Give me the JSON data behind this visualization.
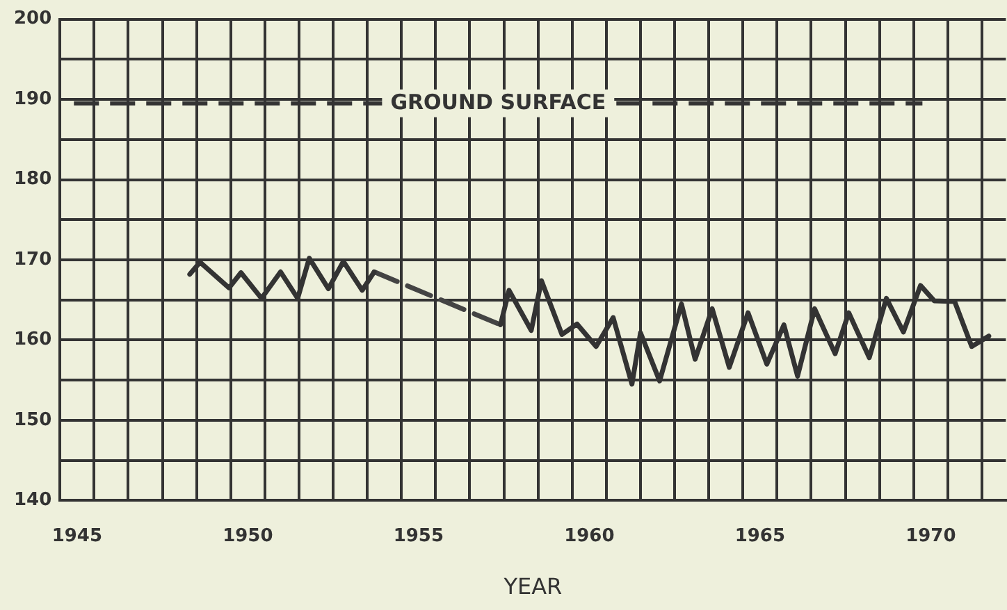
{
  "chart_data": {
    "type": "line",
    "xlabel": "YEAR",
    "xlim": [
      1944.5,
      1972.2
    ],
    "ylim": [
      140,
      200
    ],
    "xticks": [
      {
        "value": 1944.5,
        "label": null
      },
      {
        "value": 1945,
        "label": "1945"
      },
      {
        "value": 1945.5,
        "label": null
      },
      {
        "value": 1946.5,
        "label": null
      },
      {
        "value": 1947.5,
        "label": null
      },
      {
        "value": 1948.5,
        "label": null
      },
      {
        "value": 1949.5,
        "label": null
      },
      {
        "value": 1950,
        "label": "1950"
      },
      {
        "value": 1950.5,
        "label": null
      },
      {
        "value": 1951.5,
        "label": null
      },
      {
        "value": 1952.5,
        "label": null
      },
      {
        "value": 1953.5,
        "label": null
      },
      {
        "value": 1954.5,
        "label": null
      },
      {
        "value": 1955,
        "label": "1955"
      },
      {
        "value": 1955.5,
        "label": null
      },
      {
        "value": 1956.5,
        "label": null
      },
      {
        "value": 1957.5,
        "label": null
      },
      {
        "value": 1958.5,
        "label": null
      },
      {
        "value": 1959.5,
        "label": null
      },
      {
        "value": 1960,
        "label": "1960"
      },
      {
        "value": 1960.5,
        "label": null
      },
      {
        "value": 1961.5,
        "label": null
      },
      {
        "value": 1962.5,
        "label": null
      },
      {
        "value": 1963.5,
        "label": null
      },
      {
        "value": 1964.5,
        "label": null
      },
      {
        "value": 1965,
        "label": "1965"
      },
      {
        "value": 1965.5,
        "label": null
      },
      {
        "value": 1966.5,
        "label": null
      },
      {
        "value": 1967.5,
        "label": null
      },
      {
        "value": 1968.5,
        "label": null
      },
      {
        "value": 1969.5,
        "label": null
      },
      {
        "value": 1970,
        "label": "1970"
      },
      {
        "value": 1970.5,
        "label": null
      },
      {
        "value": 1971.5,
        "label": null
      }
    ],
    "yticks": [
      140,
      {
        "value": 145,
        "label": null
      },
      150,
      {
        "value": 155,
        "label": null
      },
      160,
      {
        "value": 165,
        "label": null
      },
      170,
      {
        "value": 175,
        "label": null
      },
      180,
      {
        "value": 185,
        "label": null
      },
      190,
      {
        "value": 195,
        "label": null
      },
      200
    ],
    "grid": true,
    "legend": false,
    "marker": "none",
    "ref_lines": [
      {
        "axis": "y",
        "value": 189.5,
        "label": "GROUND SURFACE",
        "line_style": "dashed",
        "color": "#333333"
      }
    ],
    "series": [
      {
        "color": "#333333",
        "line_style": "solid",
        "x": [
          1948.3,
          1948.6,
          1949.45,
          1949.8,
          1950.4,
          1950.96,
          1951.46,
          1951.8,
          1952.36,
          1952.8,
          1953.35,
          1953.7,
          1955.5,
          1957.4,
          1957.65,
          1958.3,
          1958.6,
          1959.2,
          1959.64,
          1960.2,
          1960.7,
          1961.25,
          1961.5,
          1962.06,
          1962.7,
          1963.1,
          1963.6,
          1964.1,
          1964.65,
          1965.2,
          1965.7,
          1966.1,
          1966.6,
          1967.2,
          1967.6,
          1968.2,
          1968.7,
          1969.2,
          1969.7,
          1970.1,
          1970.7,
          1971.2,
          1971.7
        ],
        "values": [
          168.2,
          169.7,
          166.5,
          168.4,
          165.2,
          168.5,
          165.2,
          170.2,
          166.4,
          169.8,
          166.2,
          168.5,
          null,
          161.9,
          166.2,
          161.2,
          167.4,
          160.7,
          162.0,
          159.2,
          162.8,
          154.5,
          160.9,
          154.9,
          164.5,
          157.6,
          163.9,
          156.6,
          163.4,
          157.0,
          161.9,
          155.5,
          163.9,
          158.3,
          163.4,
          157.8,
          165.2,
          161.0,
          166.8,
          164.9,
          164.8,
          159.2,
          160.5
        ]
      },
      {
        "color": "#444444",
        "line_style": "dashed",
        "x": [
          1953.7,
          1957.4
        ],
        "values": [
          168.5,
          161.9
        ]
      }
    ]
  }
}
